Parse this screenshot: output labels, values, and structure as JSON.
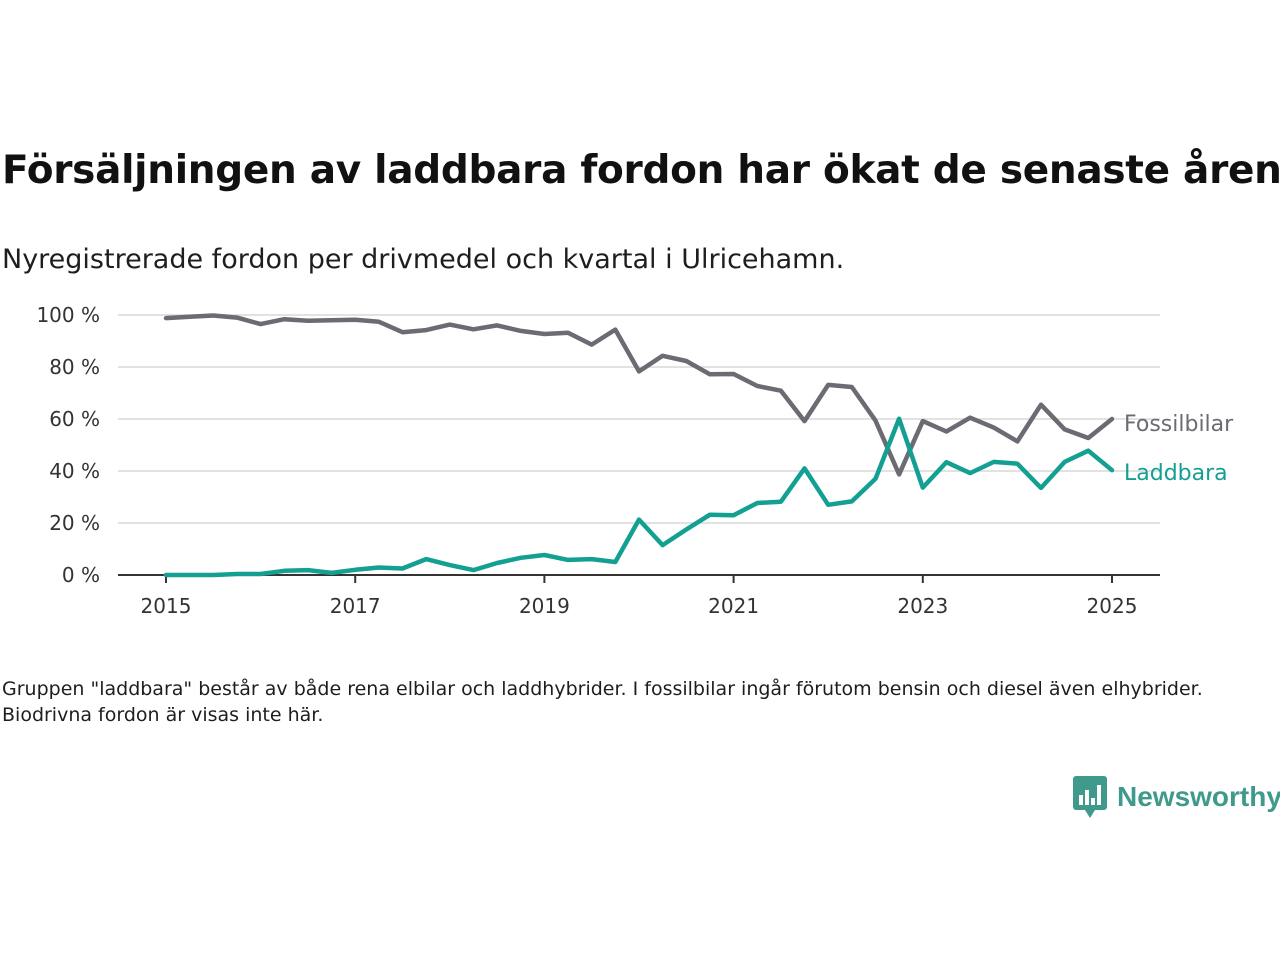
{
  "title": "Försäljningen av laddbara fordon har ökat de senaste åren",
  "subtitle": "Nyregistrerade fordon per drivmedel och kvartal i Ulricehamn.",
  "note": "Gruppen \"laddbara\" består av både rena elbilar och laddhybrider. I fossilbilar ingår förutom bensin och diesel även elhybrider. Biodrivna fordon är visas inte här.",
  "brand": {
    "name": "Newsworthy",
    "icon": "newsworthy-logo-icon",
    "color": "#3f9a8c"
  },
  "chart_data": {
    "type": "line",
    "xlim": [
      2015,
      2025.5
    ],
    "ylim": [
      0,
      100
    ],
    "y_ticks": [
      0,
      20,
      40,
      60,
      80,
      100
    ],
    "y_tick_labels": [
      "0 %",
      "20 %",
      "40 %",
      "60 %",
      "80 %",
      "100 %"
    ],
    "x_ticks": [
      2015,
      2017,
      2019,
      2021,
      2023,
      2025
    ],
    "x_tick_labels": [
      "2015",
      "2017",
      "2019",
      "2021",
      "2023",
      "2025"
    ],
    "grid": true,
    "legend": "inline-right",
    "x": [
      2015.0,
      2015.25,
      2015.5,
      2015.75,
      2016.0,
      2016.25,
      2016.5,
      2016.75,
      2017.0,
      2017.25,
      2017.5,
      2017.75,
      2018.0,
      2018.25,
      2018.5,
      2018.75,
      2019.0,
      2019.25,
      2019.5,
      2019.75,
      2020.0,
      2020.25,
      2020.5,
      2020.75,
      2021.0,
      2021.25,
      2021.5,
      2021.75,
      2022.0,
      2022.25,
      2022.5,
      2022.75,
      2023.0,
      2023.25,
      2023.5,
      2023.75,
      2024.0,
      2024.25,
      2024.5,
      2024.75,
      2025.0
    ],
    "series": [
      {
        "name": "Fossilbilar",
        "color": "#6b6b73",
        "values": [
          98.8,
          99.3,
          99.8,
          99.0,
          96.5,
          98.4,
          97.8,
          98.0,
          98.2,
          97.4,
          93.4,
          94.2,
          96.3,
          94.5,
          96.0,
          93.9,
          92.7,
          93.2,
          88.6,
          94.4,
          78.3,
          84.3,
          82.3,
          77.2,
          77.3,
          72.7,
          70.9,
          59.2,
          73.1,
          72.3,
          59.4,
          38.7,
          59.2,
          55.2,
          60.5,
          56.7,
          51.4,
          65.5,
          56.0,
          52.7,
          60.0
        ]
      },
      {
        "name": "Laddbara",
        "color": "#13a093",
        "values": [
          0.0,
          0.0,
          0.0,
          0.4,
          0.4,
          1.6,
          1.9,
          0.8,
          2.0,
          2.9,
          2.5,
          6.1,
          3.8,
          1.9,
          4.6,
          6.6,
          7.7,
          5.8,
          6.1,
          5.0,
          21.3,
          11.5,
          17.5,
          23.2,
          23.0,
          27.7,
          28.2,
          41.0,
          27.0,
          28.3,
          37.0,
          60.1,
          33.6,
          43.4,
          39.2,
          43.5,
          42.8,
          33.5,
          43.5,
          47.8,
          40.3
        ]
      }
    ]
  }
}
